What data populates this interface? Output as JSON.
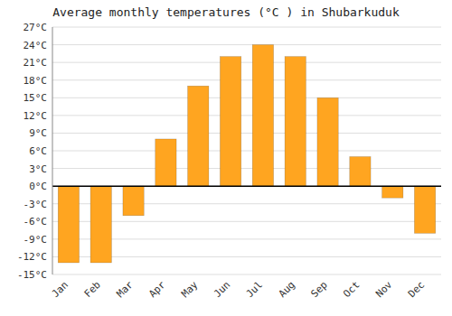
{
  "chart_data": {
    "type": "bar",
    "title": "Average monthly temperatures (°C ) in Shubarkuduk",
    "categories": [
      "Jan",
      "Feb",
      "Mar",
      "Apr",
      "May",
      "Jun",
      "Jul",
      "Aug",
      "Sep",
      "Oct",
      "Nov",
      "Dec"
    ],
    "values": [
      -13,
      -13,
      -5,
      8,
      17,
      22,
      24,
      22,
      15,
      5,
      -2,
      -8
    ],
    "color": "#FFA520",
    "ylim": [
      -15,
      27
    ],
    "yticks": [
      {
        "value": -15,
        "label": "-15°C"
      },
      {
        "value": -12,
        "label": "-12°C"
      },
      {
        "value": -9,
        "label": "-9°C"
      },
      {
        "value": -6,
        "label": "-6°C"
      },
      {
        "value": -3,
        "label": "-3°C"
      },
      {
        "value": 0,
        "label": "0°C"
      },
      {
        "value": 3,
        "label": "3°C"
      },
      {
        "value": 6,
        "label": "6°C"
      },
      {
        "value": 9,
        "label": "9°C"
      },
      {
        "value": 12,
        "label": "12°C"
      },
      {
        "value": 15,
        "label": "15°C"
      },
      {
        "value": 18,
        "label": "18°C"
      },
      {
        "value": 21,
        "label": "21°C"
      },
      {
        "value": 24,
        "label": "24°C"
      },
      {
        "value": 27,
        "label": "27°C"
      }
    ],
    "grid": true
  }
}
